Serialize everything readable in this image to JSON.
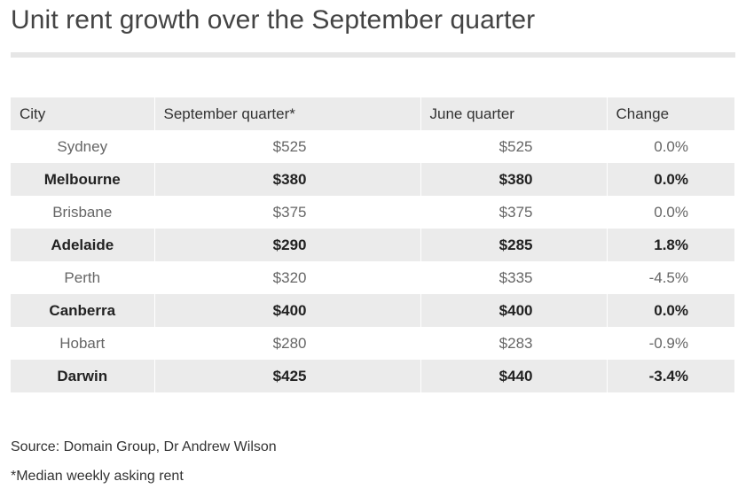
{
  "title": "Unit rent growth over the September quarter",
  "table": {
    "headers": [
      "City",
      "September quarter*",
      "June quarter",
      "Change"
    ],
    "rows": [
      {
        "city": "Sydney",
        "september": "$525",
        "june": "$525",
        "change": "0.0%"
      },
      {
        "city": "Melbourne",
        "september": "$380",
        "june": "$380",
        "change": "0.0%"
      },
      {
        "city": "Brisbane",
        "september": "$375",
        "june": "$375",
        "change": "0.0%"
      },
      {
        "city": "Adelaide",
        "september": "$290",
        "june": "$285",
        "change": "1.8%"
      },
      {
        "city": "Perth",
        "september": "$320",
        "june": "$335",
        "change": "-4.5%"
      },
      {
        "city": "Canberra",
        "september": "$400",
        "june": "$400",
        "change": "0.0%"
      },
      {
        "city": "Hobart",
        "september": "$280",
        "june": "$283",
        "change": "-0.9%"
      },
      {
        "city": "Darwin",
        "september": "$425",
        "june": "$440",
        "change": "-3.4%"
      }
    ]
  },
  "footer": {
    "source": "Source: Domain Group, Dr Andrew Wilson",
    "note": "*Median weekly asking rent"
  },
  "colors": {
    "stripe": "#ebebeb",
    "rule": "#e6e6e6",
    "title_text": "#444444"
  }
}
